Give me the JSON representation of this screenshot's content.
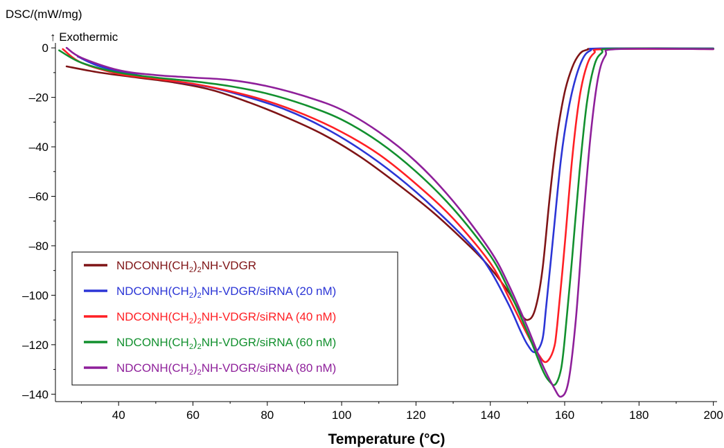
{
  "chart_data": {
    "type": "line",
    "ylabel": "DSC/(mW/mg)",
    "ylabel_note": "↑ Exothermic",
    "xlabel": "Temperature (°C)",
    "xlim": [
      23,
      201
    ],
    "ylim": [
      -143,
      2
    ],
    "xticks": [
      40,
      60,
      80,
      100,
      120,
      140,
      160,
      180,
      200
    ],
    "yticks": [
      0,
      -20,
      -40,
      -60,
      -80,
      -100,
      -120,
      -140
    ],
    "ytick_labels": [
      "0",
      "–20",
      "–40",
      "–60",
      "–80",
      "–100",
      "–120",
      "–140"
    ],
    "legend_position": "bottom-left",
    "series": [
      {
        "name": "NDCONH(CH2)2NH-VDGR",
        "label_parts": [
          "NDCONH(CH",
          "2",
          ")",
          "2",
          "NH-VDGR"
        ],
        "color": "#7f1416",
        "points": [
          [
            26,
            -7.5
          ],
          [
            35,
            -10
          ],
          [
            45,
            -12
          ],
          [
            55,
            -14
          ],
          [
            65,
            -17
          ],
          [
            75,
            -22
          ],
          [
            85,
            -28
          ],
          [
            95,
            -35
          ],
          [
            105,
            -44
          ],
          [
            115,
            -55
          ],
          [
            125,
            -67
          ],
          [
            135,
            -81
          ],
          [
            140,
            -89
          ],
          [
            145,
            -99
          ],
          [
            148,
            -107
          ],
          [
            150,
            -110
          ],
          [
            152,
            -106
          ],
          [
            154,
            -90
          ],
          [
            156,
            -60
          ],
          [
            158,
            -35
          ],
          [
            160,
            -18
          ],
          [
            162,
            -8
          ],
          [
            164,
            -2.5
          ],
          [
            166,
            -0.8
          ],
          [
            170,
            -0.3
          ],
          [
            200,
            -0.3
          ]
        ]
      },
      {
        "name": "NDCONH(CH2)2NH-VDGR/siRNA (20 nM)",
        "label_parts": [
          "NDCONH(CH",
          "2",
          ")",
          "2",
          "NH-VDGR/siRNA (20 nM)"
        ],
        "color": "#2b35d6",
        "points": [
          [
            29,
            -3.5
          ],
          [
            35,
            -7.5
          ],
          [
            45,
            -11
          ],
          [
            55,
            -13.5
          ],
          [
            65,
            -16
          ],
          [
            75,
            -20
          ],
          [
            85,
            -25
          ],
          [
            95,
            -32
          ],
          [
            105,
            -41
          ],
          [
            115,
            -52
          ],
          [
            125,
            -65
          ],
          [
            135,
            -80
          ],
          [
            140,
            -90
          ],
          [
            145,
            -104
          ],
          [
            148,
            -114
          ],
          [
            150,
            -120
          ],
          [
            152,
            -123
          ],
          [
            154,
            -118
          ],
          [
            155,
            -105
          ],
          [
            157,
            -75
          ],
          [
            159,
            -45
          ],
          [
            161,
            -25
          ],
          [
            163,
            -12
          ],
          [
            165,
            -4
          ],
          [
            167,
            -1
          ],
          [
            170,
            -0.2
          ],
          [
            200,
            -0.2
          ]
        ]
      },
      {
        "name": "NDCONH(CH2)2NH-VDGR/siRNA (40 nM)",
        "label_parts": [
          "NDCONH(CH",
          "2",
          ")",
          "2",
          "NH-VDGR/siRNA (40 nM)"
        ],
        "color": "#ff1f24",
        "points": [
          [
            25,
            -0.5
          ],
          [
            30,
            -6
          ],
          [
            40,
            -10.5
          ],
          [
            50,
            -12.5
          ],
          [
            60,
            -14.5
          ],
          [
            70,
            -17.5
          ],
          [
            80,
            -21.5
          ],
          [
            90,
            -27
          ],
          [
            100,
            -34
          ],
          [
            110,
            -43
          ],
          [
            120,
            -55
          ],
          [
            130,
            -69
          ],
          [
            140,
            -87
          ],
          [
            145,
            -101
          ],
          [
            150,
            -116
          ],
          [
            153,
            -124
          ],
          [
            155,
            -127
          ],
          [
            157,
            -122
          ],
          [
            158,
            -112
          ],
          [
            160,
            -80
          ],
          [
            162,
            -45
          ],
          [
            164,
            -20
          ],
          [
            166,
            -7
          ],
          [
            168,
            -2
          ],
          [
            171,
            -0.5
          ],
          [
            200,
            -0.5
          ]
        ]
      },
      {
        "name": "NDCONH(CH2)2NH-VDGR/siRNA (60 nM)",
        "label_parts": [
          "NDCONH(CH",
          "2",
          ")",
          "2",
          "NH-VDGR/siRNA (60 nM)"
        ],
        "color": "#12902e",
        "points": [
          [
            24,
            -1
          ],
          [
            30,
            -6
          ],
          [
            40,
            -10
          ],
          [
            50,
            -12
          ],
          [
            60,
            -13.5
          ],
          [
            70,
            -15.5
          ],
          [
            80,
            -18.5
          ],
          [
            90,
            -23
          ],
          [
            100,
            -29
          ],
          [
            110,
            -38
          ],
          [
            120,
            -50
          ],
          [
            130,
            -65
          ],
          [
            140,
            -84
          ],
          [
            145,
            -98
          ],
          [
            150,
            -115
          ],
          [
            154,
            -130
          ],
          [
            156,
            -135
          ],
          [
            157.5,
            -136
          ],
          [
            159,
            -130
          ],
          [
            160,
            -118
          ],
          [
            162,
            -85
          ],
          [
            164,
            -50
          ],
          [
            166,
            -22
          ],
          [
            168,
            -7
          ],
          [
            170,
            -2
          ],
          [
            173,
            -0.3
          ],
          [
            200,
            -0.3
          ]
        ]
      },
      {
        "name": "NDCONH(CH2)2NH-VDGR/siRNA (80 nM)",
        "label_parts": [
          "NDCONH(CH",
          "2",
          ")",
          "2",
          "NH-VDGR/siRNA (80 nM)"
        ],
        "color": "#8e1f9a",
        "points": [
          [
            26,
            0
          ],
          [
            30,
            -4
          ],
          [
            40,
            -9
          ],
          [
            50,
            -11
          ],
          [
            60,
            -12
          ],
          [
            70,
            -13
          ],
          [
            80,
            -15.5
          ],
          [
            90,
            -19.5
          ],
          [
            100,
            -25
          ],
          [
            110,
            -34
          ],
          [
            120,
            -46
          ],
          [
            130,
            -62
          ],
          [
            140,
            -82
          ],
          [
            145,
            -96
          ],
          [
            150,
            -113
          ],
          [
            154,
            -128
          ],
          [
            157,
            -137
          ],
          [
            159,
            -141
          ],
          [
            161,
            -135
          ],
          [
            163,
            -110
          ],
          [
            165,
            -70
          ],
          [
            167,
            -35
          ],
          [
            169,
            -12
          ],
          [
            171,
            -3
          ],
          [
            174,
            -0.5
          ],
          [
            200,
            -0.5
          ]
        ]
      }
    ]
  }
}
